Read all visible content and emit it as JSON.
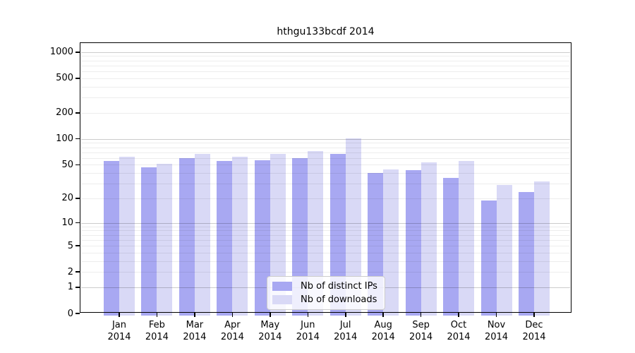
{
  "title": "hthgu133bcdf 2014",
  "chart_data": {
    "type": "bar",
    "title": "hthgu133bcdf 2014",
    "categories": [
      "Jan",
      "Feb",
      "Mar",
      "Apr",
      "May",
      "Jun",
      "Jul",
      "Aug",
      "Sep",
      "Oct",
      "Nov",
      "Dec"
    ],
    "category_year": "2014",
    "series": [
      {
        "name": "Nb of distinct IPs",
        "color": "#a8a8f2",
        "values": [
          55,
          47,
          60,
          55,
          56,
          60,
          67,
          40,
          43,
          35,
          19,
          24
        ]
      },
      {
        "name": "Nb of downloads",
        "color": "#d9d9f6",
        "values": [
          62,
          51,
          67,
          62,
          67,
          72,
          102,
          44,
          53,
          55,
          29,
          32
        ]
      }
    ],
    "y_axis": {
      "scale": "log10(value+1)",
      "ticks": [
        0,
        1,
        2,
        5,
        10,
        20,
        50,
        100,
        200,
        500,
        1000
      ],
      "range": [
        0,
        1300
      ],
      "grid_major_values": [
        1,
        10,
        100,
        1000
      ],
      "grid_minor": "2-9 per decade"
    },
    "legend": {
      "position": "inside-bottom-center",
      "entries": [
        "Nb of distinct IPs",
        "Nb of downloads"
      ]
    },
    "xlabel": "",
    "ylabel": ""
  }
}
